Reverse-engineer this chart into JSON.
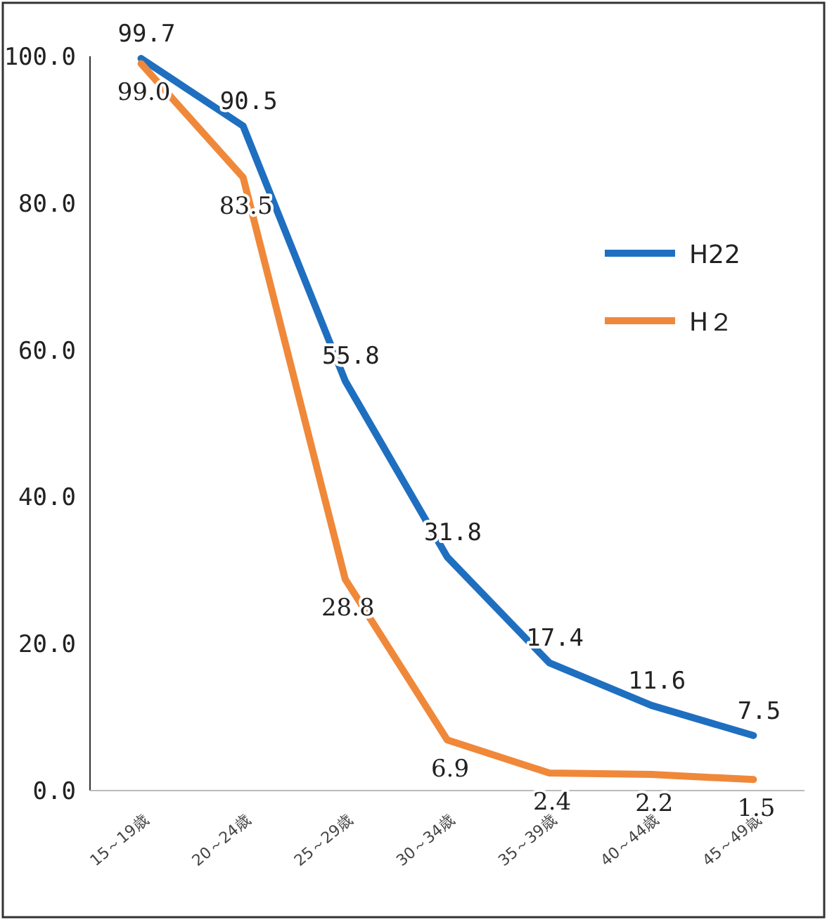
{
  "chart_data": {
    "type": "line",
    "categories": [
      "15～19歳",
      "20～24歳",
      "25～29歳",
      "30～34歳",
      "35～39歳",
      "40～44歳",
      "45～49歳"
    ],
    "series": [
      {
        "name": "H22",
        "color": "#1f6fc0",
        "values": [
          99.7,
          90.5,
          55.8,
          31.8,
          17.4,
          11.6,
          7.5
        ],
        "value_labels": [
          "99.7",
          "90.5",
          "55.8",
          "31.8",
          "17.4",
          "11.6",
          "7.5"
        ]
      },
      {
        "name": "H２",
        "color": "#f0883a",
        "values": [
          99.0,
          83.5,
          28.8,
          6.9,
          2.4,
          2.2,
          1.5
        ],
        "value_labels": [
          "99.0",
          "83.5",
          "28.8",
          "6.9",
          "2.4",
          "2.2",
          "1.5"
        ]
      }
    ],
    "ylim": [
      0,
      100
    ],
    "yticks": [
      {
        "value": 0,
        "label": "0.0"
      },
      {
        "value": 20,
        "label": "20.0"
      },
      {
        "value": 40,
        "label": "40.0"
      },
      {
        "value": 60,
        "label": "60.0"
      },
      {
        "value": 80,
        "label": "80.0"
      },
      {
        "value": 100,
        "label": "100.0"
      }
    ],
    "legend": "right",
    "line_style": "solid",
    "marker": "none"
  }
}
